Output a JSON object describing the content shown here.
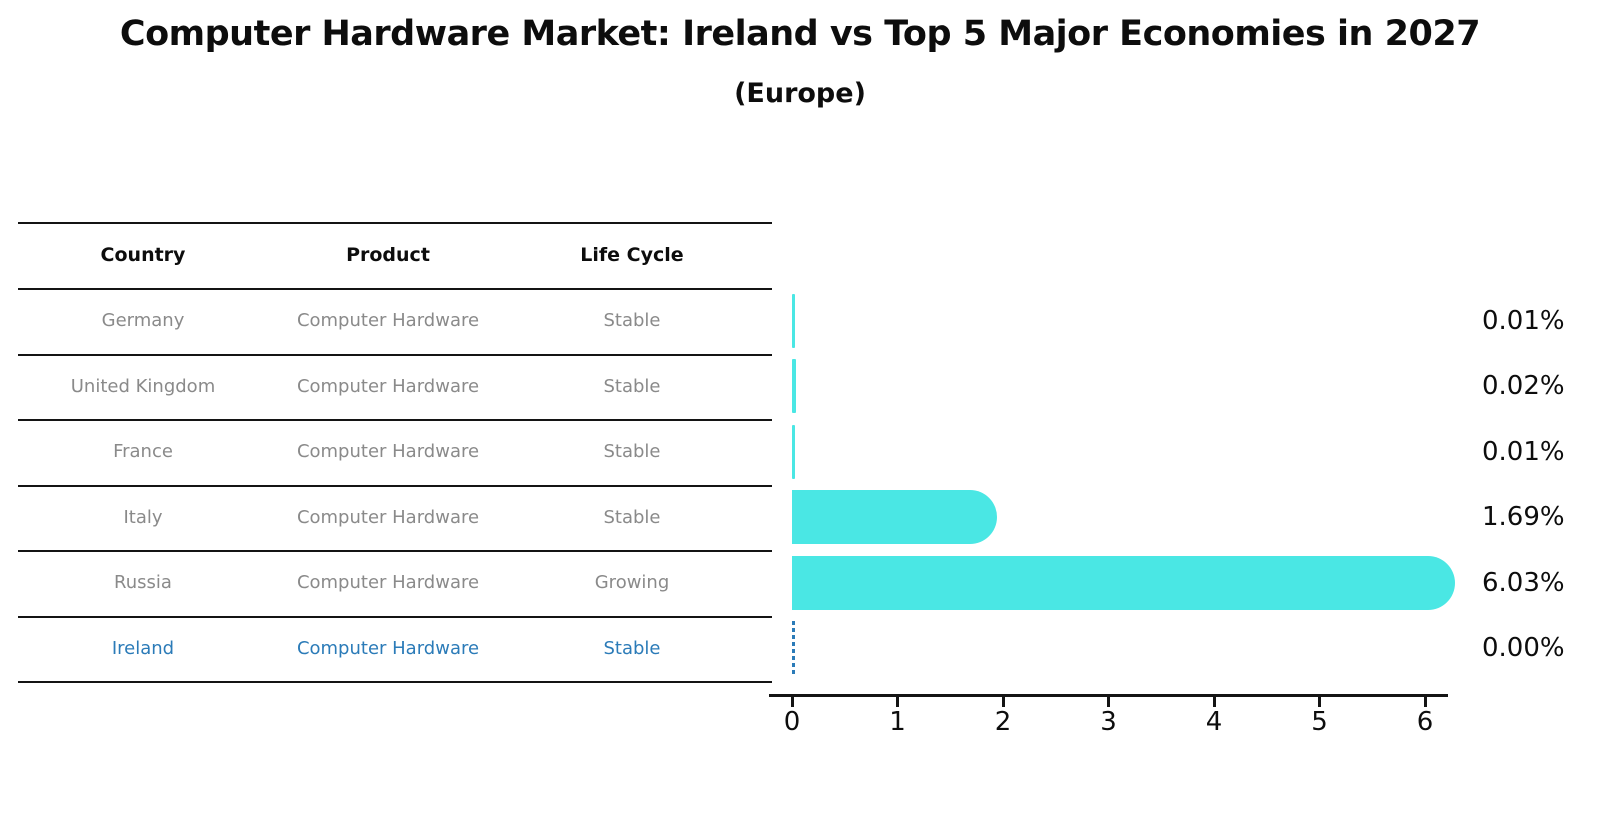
{
  "title": "Computer Hardware Market: Ireland vs Top 5 Major Economies in 2027",
  "subtitle": "(Europe)",
  "table": {
    "headers": [
      "Country",
      "Product",
      "Life Cycle"
    ]
  },
  "chart_data": {
    "type": "bar",
    "orientation": "horizontal",
    "title": "Computer Hardware Market: Ireland vs Top 5 Major Economies in 2027",
    "subtitle": "(Europe)",
    "categories": [
      "Germany",
      "United Kingdom",
      "France",
      "Italy",
      "Russia",
      "Ireland"
    ],
    "values": [
      0.01,
      0.02,
      0.01,
      1.69,
      6.03,
      0.0
    ],
    "value_labels": [
      "0.01%",
      "0.02%",
      "0.01%",
      "1.69%",
      "6.03%",
      "0.00%"
    ],
    "rows": [
      {
        "country": "Germany",
        "product": "Computer Hardware",
        "life_cycle": "Stable",
        "value": 0.01,
        "label": "0.01%",
        "highlight": false
      },
      {
        "country": "United Kingdom",
        "product": "Computer Hardware",
        "life_cycle": "Stable",
        "value": 0.02,
        "label": "0.02%",
        "highlight": false
      },
      {
        "country": "France",
        "product": "Computer Hardware",
        "life_cycle": "Stable",
        "value": 0.01,
        "label": "0.01%",
        "highlight": false
      },
      {
        "country": "Italy",
        "product": "Computer Hardware",
        "life_cycle": "Stable",
        "value": 1.69,
        "label": "1.69%",
        "highlight": false
      },
      {
        "country": "Russia",
        "product": "Computer Hardware",
        "life_cycle": "Growing",
        "value": 6.03,
        "label": "6.03%",
        "highlight": false
      },
      {
        "country": "Ireland",
        "product": "Computer Hardware",
        "life_cycle": "Stable",
        "value": 0.0,
        "label": "0.00%",
        "highlight": true
      }
    ],
    "x_axis": {
      "ticks": [
        0,
        1,
        2,
        3,
        4,
        5,
        6
      ],
      "tick_labels": [
        "0",
        "1",
        "2",
        "3",
        "4",
        "5",
        "6"
      ],
      "range": [
        0,
        6.4
      ],
      "grid": false
    },
    "legend": "none",
    "colors": {
      "bar": "#4AE7E4",
      "highlight_text": "#2b7bb8",
      "table_text": "#8a8a8a",
      "axis": "#141414"
    }
  }
}
